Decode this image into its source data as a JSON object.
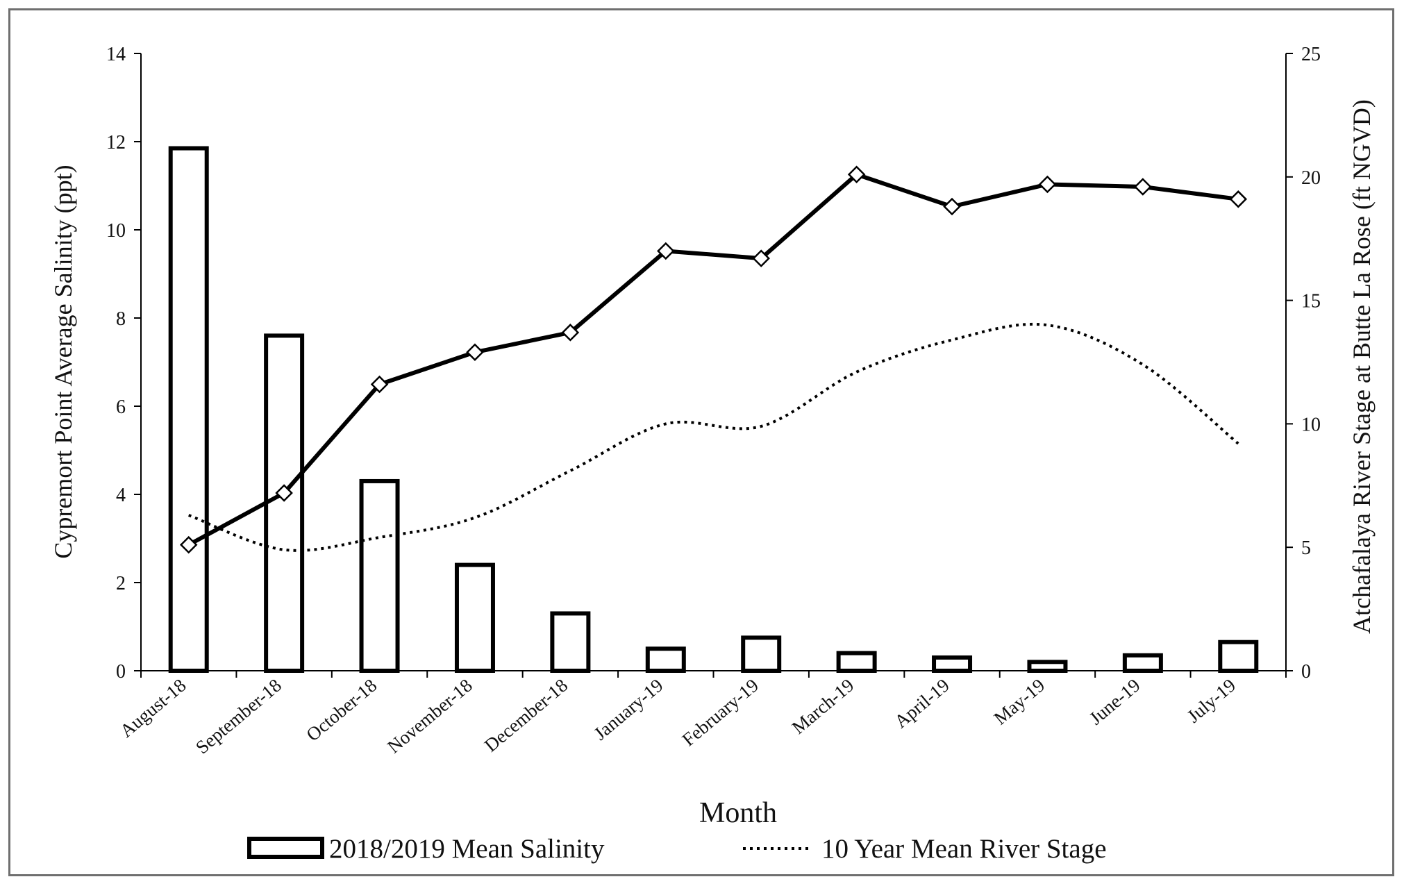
{
  "chart_data": {
    "type": "bar",
    "xlabel": "Month",
    "ylabel": "Cypremort Point Average Salinity (ppt)",
    "y2label": "Atchafalaya River Stage at Butte La Rose (ft NGVD)",
    "categories": [
      "August-18",
      "September-18",
      "October-18",
      "November-18",
      "December-18",
      "January-19",
      "February-19",
      "March-19",
      "April-19",
      "May-19",
      "June-19",
      "July-19"
    ],
    "ylim": [
      0,
      14
    ],
    "y_ticks": [
      0,
      2,
      4,
      6,
      8,
      10,
      12,
      14
    ],
    "y2lim": [
      0,
      25
    ],
    "y2_ticks": [
      0,
      5,
      10,
      15,
      20,
      25
    ],
    "grid": false,
    "legend_position": "bottom",
    "series": [
      {
        "name": "2018/2019 Mean Salinity",
        "type": "bar",
        "axis": "left",
        "values": [
          11.85,
          7.6,
          4.3,
          2.4,
          1.3,
          0.5,
          0.75,
          0.4,
          0.3,
          0.2,
          0.35,
          0.65
        ]
      },
      {
        "type": "line",
        "axis": "right",
        "style": "solid",
        "marker": "diamond",
        "values": [
          5.1,
          7.2,
          11.6,
          12.9,
          13.7,
          17.0,
          16.7,
          20.1,
          18.8,
          19.7,
          19.6,
          19.1
        ]
      },
      {
        "name": "10 Year Mean River Stage",
        "type": "line",
        "axis": "right",
        "style": "dotted",
        "values": [
          6.3,
          4.9,
          5.4,
          6.2,
          8.1,
          10.0,
          9.9,
          12.1,
          13.4,
          14.0,
          12.4,
          9.2
        ]
      }
    ],
    "colors": {
      "line": "#000000",
      "bar_fill": "#ffffff",
      "frame": "#6f6f6f"
    }
  }
}
